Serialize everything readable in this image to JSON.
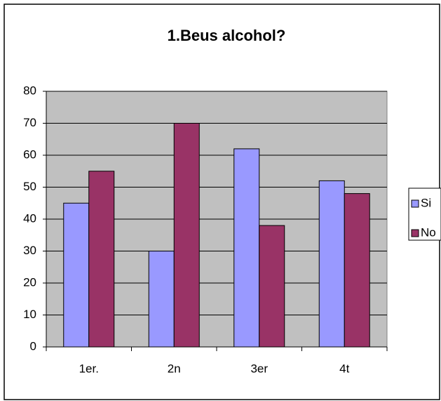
{
  "chart_data": {
    "type": "bar",
    "title": "1.Beus alcohol?",
    "categories": [
      "1er.",
      "2n",
      "3er",
      "4t"
    ],
    "series": [
      {
        "name": "Si",
        "color": "#9999ff",
        "values": [
          45,
          30,
          62,
          52
        ]
      },
      {
        "name": "No",
        "color": "#993366",
        "values": [
          55,
          70,
          38,
          48
        ]
      }
    ],
    "ylim": [
      0,
      80
    ],
    "yticks": [
      0,
      10,
      20,
      30,
      40,
      50,
      60,
      70,
      80
    ],
    "grid": true,
    "legend": "right"
  }
}
